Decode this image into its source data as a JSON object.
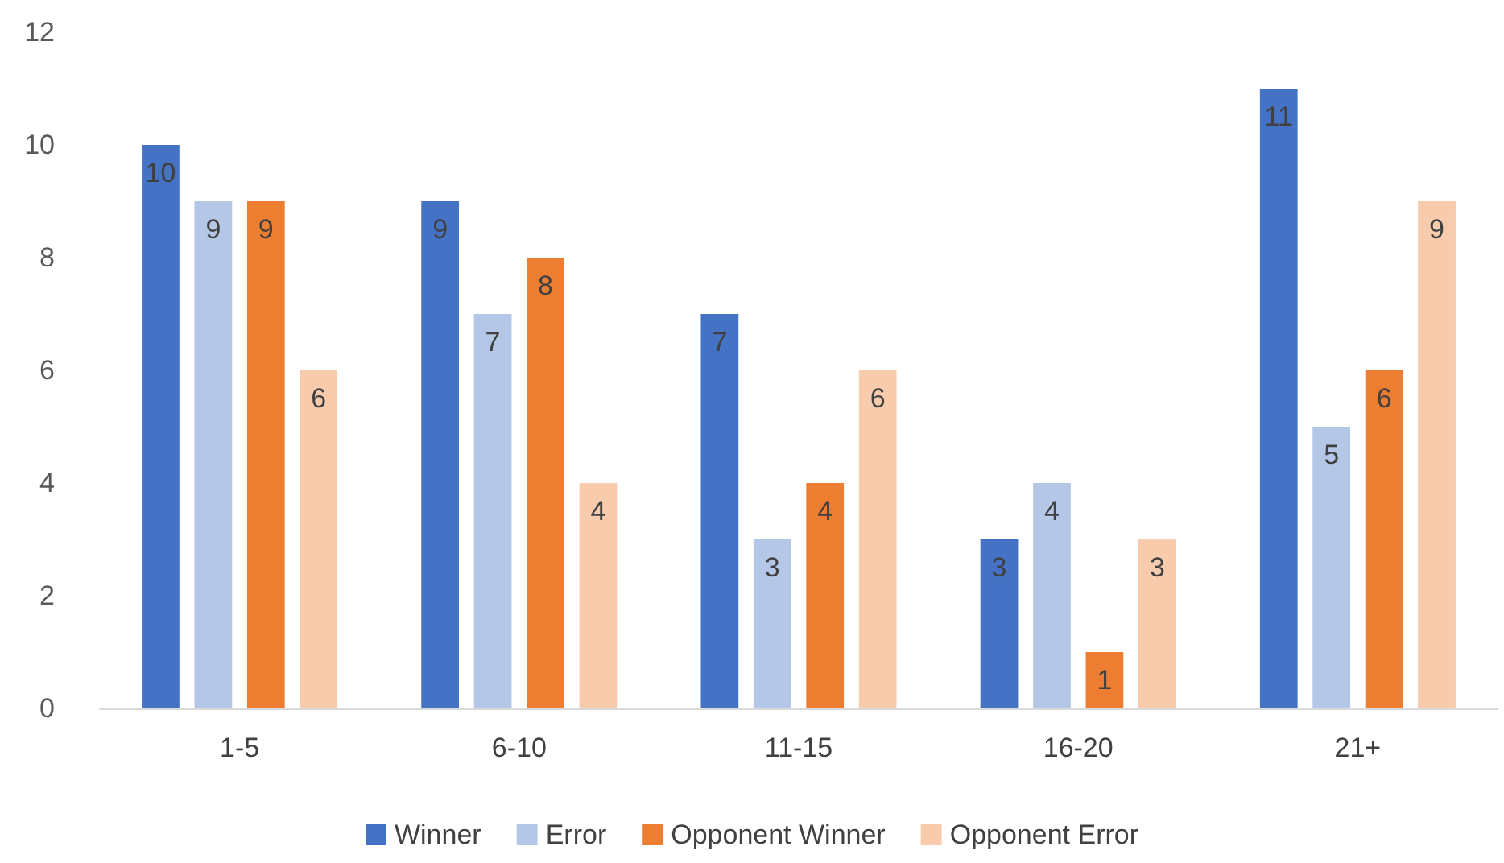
{
  "chart_data": {
    "type": "bar",
    "categories": [
      "1-5",
      "6-10",
      "11-15",
      "16-20",
      "21+"
    ],
    "series": [
      {
        "name": "Winner",
        "color": "#4472c4",
        "values": [
          10,
          9,
          7,
          3,
          11
        ]
      },
      {
        "name": "Error",
        "color": "#b4c7e7",
        "values": [
          9,
          7,
          3,
          4,
          5
        ]
      },
      {
        "name": "Opponent Winner",
        "color": "#ed7d31",
        "values": [
          9,
          8,
          4,
          1,
          6
        ]
      },
      {
        "name": "Opponent Error",
        "color": "#f8cbad",
        "values": [
          6,
          4,
          6,
          3,
          9
        ]
      }
    ],
    "ylim": [
      0,
      12
    ],
    "yticks": [
      0,
      2,
      4,
      6,
      8,
      10,
      12
    ],
    "grid": false,
    "legend": "bottom",
    "data_labels": true
  }
}
